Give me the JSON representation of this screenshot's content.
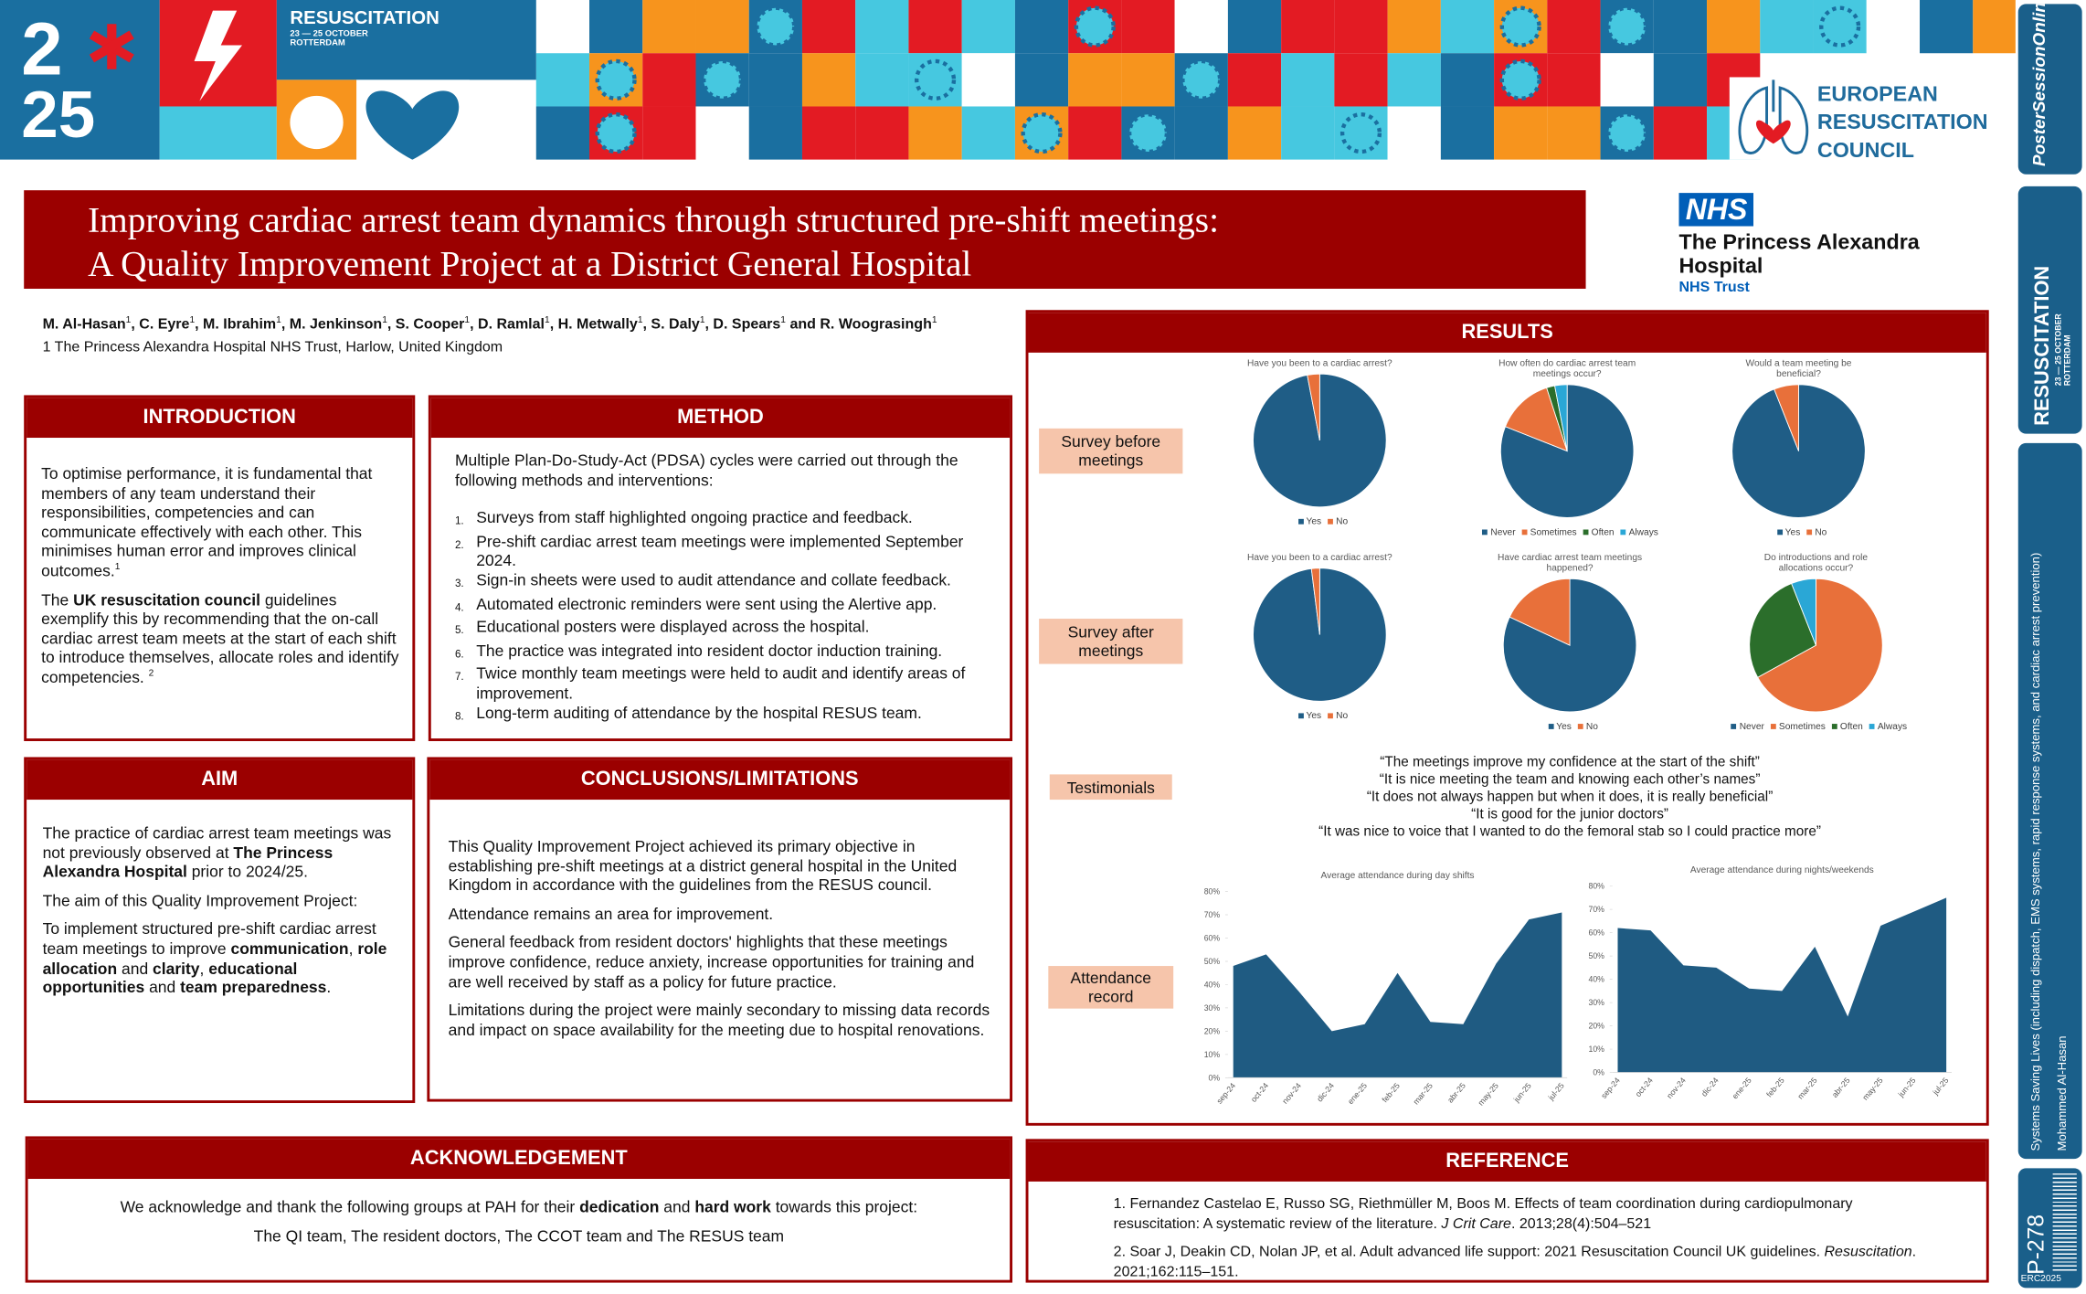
{
  "banner": {
    "logo_top": "2",
    "logo_bottom": "25",
    "event": "RESUSCITATION",
    "dates": "23 — 25 OCTOBER",
    "city": "ROTTERDAM",
    "erc": [
      "EUROPEAN",
      "RESUSCITATION",
      "COUNCIL"
    ]
  },
  "sidebar": {
    "brand": "PosterSessionOnline",
    "event": "RESUSCITATION",
    "dates": "23 — 25 OCTOBER",
    "city": "ROTTERDAM",
    "topic": "Systems Saving Lives (including dispatch, EMS systems, rapid response systems, and cardiac arrest prevention)",
    "author": "Mohammed Al-Hasan",
    "poster_id": "P-278",
    "code": "ERC2025"
  },
  "nhs": {
    "badge": "NHS",
    "name": [
      "The Princess Alexandra",
      "Hospital"
    ],
    "trust": "NHS Trust"
  },
  "title": [
    "Improving cardiac arrest team dynamics through structured pre-shift meetings:",
    "A Quality Improvement Project at a District General Hospital"
  ],
  "authors": [
    [
      {
        "text": "M. Al-Hasan",
        "bold": true
      },
      {
        "text": "1",
        "sup": true
      },
      {
        "text": ", C. Eyre",
        "bold": true
      },
      {
        "text": "1",
        "sup": true
      },
      {
        "text": ", M. Ibrahim",
        "bold": true
      },
      {
        "text": "1",
        "sup": true
      },
      {
        "text": ", M. Jenkinson",
        "bold": true
      },
      {
        "text": "1",
        "sup": true
      },
      {
        "text": ", S. Cooper",
        "bold": true
      },
      {
        "text": "1",
        "sup": true
      },
      {
        "text": ", D. Ramlal",
        "bold": true
      },
      {
        "text": "1",
        "sup": true
      },
      {
        "text": ", H. Metwally",
        "bold": true
      },
      {
        "text": "1",
        "sup": true
      },
      {
        "text": ", S. Daly",
        "bold": true
      },
      {
        "text": "1",
        "sup": true
      },
      {
        "text": ", D. Spears",
        "bold": true
      },
      {
        "text": "1",
        "sup": true
      },
      {
        "text": " and R. Woograsingh",
        "bold": true
      },
      {
        "text": "1",
        "sup": true
      }
    ],
    [
      {
        "text": "1 The Princess Alexandra Hospital NHS Trust, Harlow, United Kingdom"
      }
    ]
  ],
  "introduction": {
    "heading": "INTRODUCTION",
    "paragraphs": [
      [
        {
          "text": "To optimise performance, it is fundamental that members of any team understand their responsibilities, competencies and can communicate effectively with each other. This minimises human error and improves clinical outcomes."
        },
        {
          "text": "1",
          "sup": true
        }
      ],
      [
        {
          "text": "The "
        },
        {
          "text": "UK resuscitation council",
          "bold": true
        },
        {
          "text": " guidelines exemplify this by recommending that the on-call cardiac arrest team meets at the start of each shift to introduce themselves, allocate roles and identify competencies. "
        },
        {
          "text": "2",
          "sup": true
        }
      ]
    ]
  },
  "method": {
    "heading": "METHOD",
    "paragraphs": [
      [
        {
          "text": "Multiple Plan-Do-Study-Act (PDSA) cycles were carried out through the following methods and interventions:"
        }
      ]
    ],
    "list": [
      {
        "marker": "1.",
        "text": "Surveys from staff highlighted ongoing practice and feedback."
      },
      {
        "marker": "2.",
        "text": "Pre-shift cardiac arrest team meetings were implemented September 2024."
      },
      {
        "marker": "3.",
        "text": "Sign-in sheets were used to audit attendance and collate feedback."
      },
      {
        "marker": "4.",
        "text": "Automated electronic reminders were sent using the Alertive app."
      },
      {
        "marker": "5.",
        "text": "Educational posters were displayed across the hospital."
      },
      {
        "marker": "6.",
        "text": "The practice was integrated into resident doctor induction training."
      },
      {
        "marker": "7.",
        "text": "Twice monthly team meetings were held to audit and identify areas of improvement."
      },
      {
        "marker": "8.",
        "text": "Long-term auditing of attendance by the hospital RESUS team."
      }
    ]
  },
  "aim": {
    "heading": "AIM",
    "paragraphs": [
      [
        {
          "text": "The practice of cardiac arrest team meetings was not previously observed at "
        },
        {
          "text": "The Princess Alexandra Hospital",
          "bold": true
        },
        {
          "text": " prior to 2024/25."
        }
      ],
      [
        {
          "text": "The aim of this Quality Improvement Project:"
        }
      ],
      [
        {
          "text": "To implement structured pre-shift cardiac arrest team meetings to improve "
        },
        {
          "text": "communication",
          "bold": true
        },
        {
          "text": ", "
        },
        {
          "text": "role allocation",
          "bold": true
        },
        {
          "text": " and "
        },
        {
          "text": "clarity",
          "bold": true
        },
        {
          "text": ", "
        },
        {
          "text": "educational opportunities",
          "bold": true
        },
        {
          "text": " and "
        },
        {
          "text": "team preparedness",
          "bold": true
        },
        {
          "text": "."
        }
      ]
    ]
  },
  "conclusions": {
    "heading": "CONCLUSIONS/LIMITATIONS",
    "paragraphs": [
      [
        {
          "text": "This Quality Improvement Project achieved its primary objective in establishing pre-shift meetings at a district general hospital in the United Kingdom in accordance with the guidelines from the RESUS council."
        }
      ],
      [
        {
          "text": "Attendance remains an area for improvement."
        }
      ],
      [
        {
          "text": "General feedback from resident doctors' highlights that these meetings improve confidence, reduce anxiety, increase opportunities for training and are well received by staff as a policy for future practice."
        }
      ],
      [
        {
          "text": "Limitations during the project were mainly secondary to missing data records and impact on space availability for the meeting due to hospital renovations."
        }
      ]
    ]
  },
  "acknowledgement": {
    "heading": "ACKNOWLEDGEMENT",
    "paragraphs": [
      [
        {
          "text": "We acknowledge and thank the following groups at PAH for their "
        },
        {
          "text": "dedication",
          "bold": true
        },
        {
          "text": " and "
        },
        {
          "text": "hard work",
          "bold": true
        },
        {
          "text": " towards this project:"
        }
      ],
      [
        {
          "text": "The QI team, The resident doctors, The CCOT team and The RESUS team"
        }
      ]
    ]
  },
  "reference": {
    "heading": "REFERENCE",
    "paragraphs": [
      [
        {
          "text": "1. Fernandez Castelao E, Russo SG, Riethmüller M, Boos M. Effects of team coordination during cardiopulmonary resuscitation: A systematic review of the literature. "
        },
        {
          "text": "J Crit Care",
          "italic": true
        },
        {
          "text": ". 2013;28(4):504–521"
        }
      ],
      [
        {
          "text": "2. Soar J, Deakin CD, Nolan JP, et al. Adult advanced life support: 2021 Resuscitation Council UK guidelines. "
        },
        {
          "text": "Resuscitation",
          "italic": true
        },
        {
          "text": ". 2021;162:115–151."
        }
      ]
    ]
  },
  "results": {
    "heading": "RESULTS",
    "row_labels": [
      "Survey before meetings",
      "Survey after meetings",
      "Testimonials",
      "Attendance record"
    ],
    "testimonials": [
      "“The meetings improve my confidence at the start of the shift”",
      "“It is nice meeting the team and knowing each other’s names”",
      "“It does not always happen but when it does, it is really beneficial”",
      "“It is good for the junior doctors”",
      "“It was nice to voice that I wanted to do the femoral stab so I could practice more”"
    ],
    "charts": [
      {
        "type": "pie",
        "title": "Have you been to a cardiac arrest?",
        "categories": [
          "Yes",
          "No"
        ],
        "values": [
          97,
          3
        ],
        "colors": [
          "#1f5d86",
          "#e8703a"
        ]
      },
      {
        "type": "pie",
        "title": "How often do cardiac arrest team meetings occur?",
        "categories": [
          "Never",
          "Sometimes",
          "Often",
          "Always"
        ],
        "values": [
          81,
          14,
          2,
          3
        ],
        "colors": [
          "#1f5d86",
          "#e8703a",
          "#2b6e2b",
          "#2aa7d6"
        ]
      },
      {
        "type": "pie",
        "title": "Would a team meeting be beneficial?",
        "categories": [
          "Yes",
          "No"
        ],
        "values": [
          94,
          6
        ],
        "colors": [
          "#1f5d86",
          "#e8703a"
        ]
      },
      {
        "type": "pie",
        "title": "Have you been to a cardiac arrest?",
        "categories": [
          "Yes",
          "No"
        ],
        "values": [
          98,
          2
        ],
        "colors": [
          "#1f5d86",
          "#e8703a"
        ]
      },
      {
        "type": "pie",
        "title": "Have cardiac arrest team meetings happened?",
        "categories": [
          "Yes",
          "No"
        ],
        "values": [
          82,
          18
        ],
        "colors": [
          "#1f5d86",
          "#e8703a"
        ]
      },
      {
        "type": "pie",
        "title": "Do introductions and role allocations occur?",
        "categories": [
          "Never",
          "Sometimes",
          "Often",
          "Always"
        ],
        "values": [
          0,
          67,
          27,
          6
        ],
        "colors": [
          "#1f5d86",
          "#e8703a",
          "#2b6e2b",
          "#2aa7d6"
        ]
      },
      {
        "type": "area",
        "title": "Average attendance during day shifts",
        "categories": [
          "sep-24",
          "oct-24",
          "nov-24",
          "dic-24",
          "ene-25",
          "feb-25",
          "mar-25",
          "abr-25",
          "may-25",
          "jun-25",
          "jul-25"
        ],
        "values": [
          48,
          53,
          37,
          20,
          23,
          45,
          24,
          23,
          49,
          68,
          71
        ],
        "color": "#1f5b82",
        "ylim": [
          0,
          80
        ],
        "yticks": [
          {
            "value": 0,
            "label": "0%"
          },
          {
            "value": 10,
            "label": "10%"
          },
          {
            "value": 20,
            "label": "20%"
          },
          {
            "value": 30,
            "label": "30%"
          },
          {
            "value": 40,
            "label": "40%"
          },
          {
            "value": 50,
            "label": "50%"
          },
          {
            "value": 60,
            "label": "60%"
          },
          {
            "value": 70,
            "label": "70%"
          },
          {
            "value": 80,
            "label": "80%"
          }
        ]
      },
      {
        "type": "area",
        "title": "Average attendance during nights/weekends",
        "categories": [
          "sep-24",
          "oct-24",
          "nov-24",
          "dic-24",
          "ene-25",
          "feb-25",
          "mar-25",
          "abr-25",
          "may-25",
          "jun-25",
          "jul-25"
        ],
        "values": [
          62,
          61,
          46,
          45,
          36,
          35,
          54,
          24,
          63,
          69,
          75
        ],
        "color": "#1f5b82",
        "ylim": [
          0,
          80
        ],
        "yticks": [
          {
            "value": 0,
            "label": "0%"
          },
          {
            "value": 10,
            "label": "10%"
          },
          {
            "value": 20,
            "label": "20%"
          },
          {
            "value": 30,
            "label": "30%"
          },
          {
            "value": 40,
            "label": "40%"
          },
          {
            "value": 50,
            "label": "50%"
          },
          {
            "value": 60,
            "label": "60%"
          },
          {
            "value": 70,
            "label": "70%"
          },
          {
            "value": 80,
            "label": "80%"
          }
        ]
      }
    ]
  }
}
